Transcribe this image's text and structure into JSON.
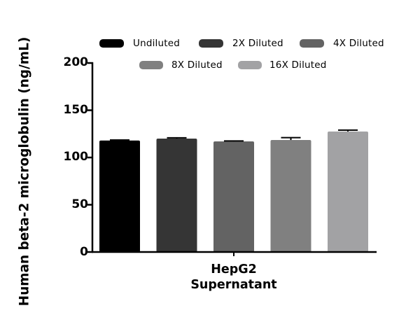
{
  "chart_data": {
    "type": "bar",
    "title": "",
    "xlabel": "",
    "ylabel": "Human beta-2 microglobulin (ng/mL)",
    "categories": [
      "HepG2 Supernatant"
    ],
    "category_lines": [
      "HepG2",
      "Supernatant"
    ],
    "ylim": [
      0,
      200
    ],
    "yticks": [
      0,
      50,
      100,
      150,
      200
    ],
    "grid": false,
    "legend_position": "top",
    "series": [
      {
        "name": "Undiluted",
        "values": [
          118
        ],
        "error": [
          0.5
        ],
        "color": "#000000"
      },
      {
        "name": "2X Diluted",
        "values": [
          120
        ],
        "error": [
          0.8
        ],
        "color": "#353535"
      },
      {
        "name": "4X Diluted",
        "values": [
          117
        ],
        "error": [
          0.5
        ],
        "color": "#636363"
      },
      {
        "name": "8X Diluted",
        "values": [
          118.5
        ],
        "error": [
          2.5
        ],
        "color": "#808080"
      },
      {
        "name": "16X Diluted",
        "values": [
          127.5
        ],
        "error": [
          1.5
        ],
        "color": "#a2a2a4"
      }
    ]
  },
  "legend": {
    "items": [
      {
        "label": "Undiluted",
        "color": "#000000"
      },
      {
        "label": "2X Diluted",
        "color": "#353535"
      },
      {
        "label": "4X Diluted",
        "color": "#636363"
      },
      {
        "label": "8X Diluted",
        "color": "#808080"
      },
      {
        "label": "16X Diluted",
        "color": "#a2a2a4"
      }
    ]
  },
  "axis": {
    "ylabel": "Human beta-2 microglobulin (ng/mL)",
    "ytick_labels": [
      "0",
      "50",
      "100",
      "150",
      "200"
    ],
    "xcategory_line1": "HepG2",
    "xcategory_line2": "Supernatant"
  }
}
